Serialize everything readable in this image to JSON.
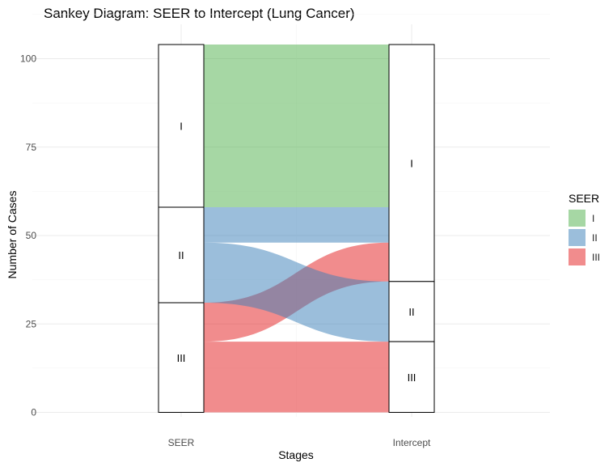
{
  "title": "Sankey Diagram: SEER to Intercept (Lung Cancer)",
  "chart_data": {
    "type": "sankey",
    "title": "Sankey Diagram: SEER to Intercept (Lung Cancer)",
    "xlabel": "Stages",
    "ylabel": "Number of Cases",
    "axes": [
      "SEER",
      "Intercept"
    ],
    "ylim": [
      0,
      104
    ],
    "yticks": [
      0,
      25,
      50,
      75,
      100
    ],
    "grid": true,
    "stages": [
      "I",
      "II",
      "III"
    ],
    "flows": [
      {
        "from": "I",
        "to": "I",
        "value": 46
      },
      {
        "from": "II",
        "to": "I",
        "value": 10
      },
      {
        "from": "II",
        "to": "II",
        "value": 17
      },
      {
        "from": "III",
        "to": "I",
        "value": 11
      },
      {
        "from": "III",
        "to": "III",
        "value": 20
      }
    ],
    "colors": {
      "I": "#4DAF4A",
      "II": "#377EB8",
      "III": "#E41A1C"
    },
    "legend": {
      "title": "SEER",
      "position": "right",
      "items": [
        {
          "label": "I",
          "color": "#4DAF4A"
        },
        {
          "label": "II",
          "color": "#377EB8"
        },
        {
          "label": "III",
          "color": "#E41A1C"
        }
      ]
    }
  }
}
